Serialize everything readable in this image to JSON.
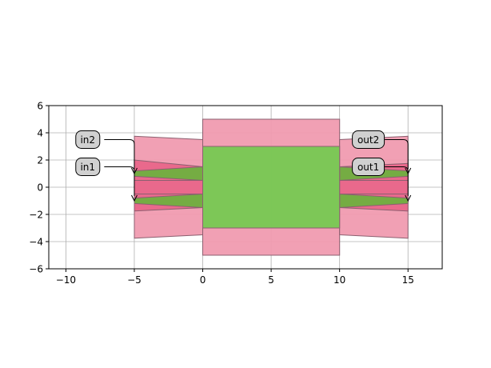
{
  "chart_data": {
    "type": "diagram",
    "xlim": [
      -11.25,
      17.5
    ],
    "ylim": [
      -6,
      6
    ],
    "grid": true,
    "x_ticks": [
      -10,
      -5,
      0,
      5,
      10,
      15
    ],
    "y_ticks": [
      -6,
      -4,
      -2,
      0,
      2,
      4,
      6
    ],
    "x_tick_labels": [
      "−10",
      "−5",
      "0",
      "5",
      "10",
      "15"
    ],
    "y_tick_labels": [
      "−6",
      "−4",
      "−2",
      "0",
      "2",
      "4",
      "6"
    ],
    "colors": {
      "cladding": "#f09bb0",
      "core_pink": "#e8668a",
      "core_green": "#6fb03f",
      "mmi_green": "#76c952",
      "outline": "#8c6070",
      "grid": "#b0b0b0",
      "port_box": "#d0d0d0"
    },
    "shapes": [
      {
        "name": "left-cladding-taper",
        "fill": "cladding",
        "points": [
          [
            -5,
            -3.75
          ],
          [
            0,
            -3.5
          ],
          [
            0,
            3.5
          ],
          [
            -5,
            3.75
          ]
        ]
      },
      {
        "name": "mmi-cladding",
        "fill": "cladding",
        "points": [
          [
            0,
            -5
          ],
          [
            10,
            -5
          ],
          [
            10,
            5
          ],
          [
            0,
            5
          ]
        ]
      },
      {
        "name": "right-cladding-taper",
        "fill": "cladding",
        "points": [
          [
            10,
            -3.5
          ],
          [
            15,
            -3.75
          ],
          [
            15,
            3.75
          ],
          [
            10,
            3.5
          ]
        ]
      },
      {
        "name": "left-upper-core-pink",
        "fill": "core_pink",
        "points": [
          [
            -5,
            0.5
          ],
          [
            0,
            0.5
          ],
          [
            0,
            1.5
          ],
          [
            -5,
            2.0
          ]
        ]
      },
      {
        "name": "left-lower-core-pink",
        "fill": "core_pink",
        "points": [
          [
            -5,
            -1.75
          ],
          [
            0,
            -1.5
          ],
          [
            0,
            -0.5
          ],
          [
            -5,
            -0.5
          ]
        ]
      },
      {
        "name": "right-upper-core-pink",
        "fill": "core_pink",
        "points": [
          [
            10,
            0.5
          ],
          [
            15,
            0.5
          ],
          [
            15,
            1.75
          ],
          [
            10,
            1.5
          ]
        ]
      },
      {
        "name": "right-lower-core-pink",
        "fill": "core_pink",
        "points": [
          [
            10,
            -1.5
          ],
          [
            15,
            -1.75
          ],
          [
            15,
            -0.5
          ],
          [
            10,
            -0.5
          ]
        ]
      },
      {
        "name": "center-core-pink-left",
        "fill": "core_pink",
        "points": [
          [
            -5,
            -0.5
          ],
          [
            0,
            -0.5
          ],
          [
            0,
            0.5
          ],
          [
            -5,
            0.5
          ]
        ]
      },
      {
        "name": "center-core-pink-right",
        "fill": "core_pink",
        "points": [
          [
            10,
            -0.5
          ],
          [
            15,
            -0.5
          ],
          [
            15,
            0.5
          ],
          [
            10,
            0.5
          ]
        ]
      },
      {
        "name": "left-upper-taper-green",
        "fill": "core_green",
        "points": [
          [
            -5,
            1.2
          ],
          [
            0,
            1.5
          ],
          [
            0,
            0.5
          ],
          [
            -5,
            0.8
          ]
        ]
      },
      {
        "name": "left-lower-taper-green",
        "fill": "core_green",
        "points": [
          [
            -5,
            -0.8
          ],
          [
            0,
            -0.5
          ],
          [
            0,
            -1.5
          ],
          [
            -5,
            -1.2
          ]
        ]
      },
      {
        "name": "right-upper-taper-green",
        "fill": "core_green",
        "points": [
          [
            10,
            1.5
          ],
          [
            15,
            1.2
          ],
          [
            15,
            0.8
          ],
          [
            10,
            0.5
          ]
        ]
      },
      {
        "name": "right-lower-taper-green",
        "fill": "core_green",
        "points": [
          [
            10,
            -0.5
          ],
          [
            15,
            -0.8
          ],
          [
            15,
            -1.2
          ],
          [
            10,
            -1.5
          ]
        ]
      },
      {
        "name": "mmi-core",
        "fill": "mmi_green",
        "points": [
          [
            0,
            -3
          ],
          [
            10,
            -3
          ],
          [
            10,
            3
          ],
          [
            0,
            3
          ]
        ]
      }
    ],
    "ports": [
      {
        "label": "in2",
        "box_center": [
          -8.4,
          3.5
        ],
        "arrow_from": [
          -7.2,
          3.5
        ],
        "arrow_to": [
          -5,
          1.0
        ],
        "side": "left"
      },
      {
        "label": "in1",
        "box_center": [
          -8.4,
          1.5
        ],
        "arrow_from": [
          -7.2,
          1.5
        ],
        "arrow_to": [
          -5,
          -1.0
        ],
        "side": "left"
      },
      {
        "label": "out2",
        "box_center": [
          12.1,
          3.5
        ],
        "arrow_from": [
          13.3,
          3.5
        ],
        "arrow_to": [
          15,
          1.0
        ],
        "side": "right"
      },
      {
        "label": "out1",
        "box_center": [
          12.1,
          1.5
        ],
        "arrow_from": [
          13.3,
          1.5
        ],
        "arrow_to": [
          15,
          -1.0
        ],
        "side": "right"
      }
    ]
  }
}
